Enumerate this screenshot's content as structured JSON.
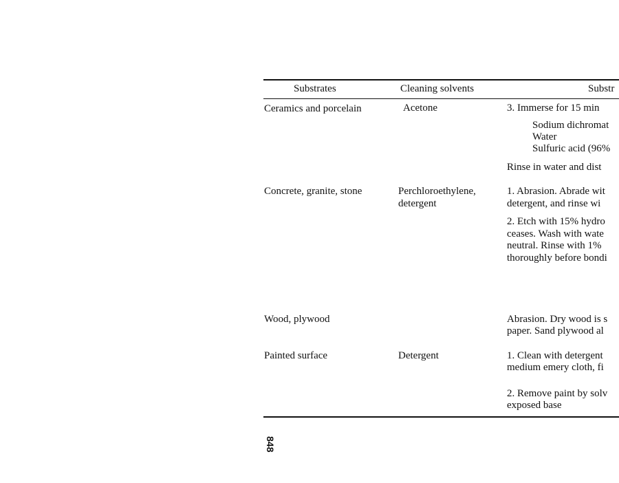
{
  "table": {
    "headers": [
      "Substrates",
      "Cleaning solvents",
      "Substr"
    ],
    "rows": [
      {
        "substrate": [
          "Ceramics and porcelain"
        ],
        "solvent": [
          "Acetone"
        ],
        "treatment": [
          "3. Immerse for 15 min",
          "Sodium dichromat",
          "Water",
          "Sulfuric acid (96%",
          "Rinse in water and dist"
        ]
      },
      {
        "substrate": [
          "Concrete, granite, stone"
        ],
        "solvent": [
          "Perchloroethylene,",
          "detergent"
        ],
        "treatment": [
          "1. Abrasion. Abrade wit",
          "detergent, and rinse wi",
          "2. Etch with 15% hydro",
          "ceases. Wash with wate",
          "neutral. Rinse with 1%",
          "thoroughly before bondi"
        ]
      },
      {
        "substrate": [
          "Wood, plywood"
        ],
        "solvent": [],
        "treatment": [
          "Abrasion. Dry wood is s",
          "paper. Sand plywood al"
        ]
      },
      {
        "substrate": [
          "Painted surface"
        ],
        "solvent": [
          "Detergent"
        ],
        "treatment": [
          "1. Clean with detergent",
          "medium emery cloth, fi",
          "2. Remove paint by solv",
          "exposed base"
        ]
      }
    ]
  },
  "page_number": "848"
}
